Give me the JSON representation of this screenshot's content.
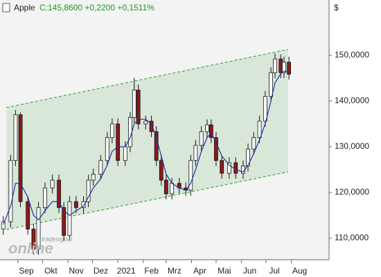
{
  "chart_data": {
    "type": "candlestick",
    "title": "Apple",
    "quote": "C:145,8600 +0,2200 +0,1511%",
    "y_label": "$",
    "watermark": [
      "tradesignal",
      "online"
    ],
    "x": [
      4,
      13,
      19,
      25,
      34,
      41,
      47,
      55,
      64,
      72,
      78,
      85,
      93,
      102,
      108,
      114,
      123,
      131,
      137,
      144,
      153,
      159,
      164,
      169,
      178,
      185,
      191,
      197,
      203,
      210,
      219,
      227,
      233,
      239,
      246,
      253,
      258,
      264,
      271,
      280,
      288,
      297,
      303,
      310,
      317,
      324,
      331,
      336,
      343,
      347,
      353
    ],
    "open": [
      112,
      113.6,
      127,
      137,
      118,
      112,
      107.6,
      116.7,
      121,
      122.7,
      116.7,
      110.6,
      118,
      116.7,
      118,
      122.7,
      124,
      127,
      132,
      135,
      127,
      130,
      136.4,
      142.4,
      135,
      135.6,
      133.3,
      127,
      122.7,
      119.7,
      122,
      121,
      120.5,
      127,
      130.3,
      133.3,
      134.8,
      132,
      127,
      124.2,
      126.5,
      124.2,
      125.8,
      129.5,
      132,
      135.6,
      141,
      146.2,
      149.2,
      146.2,
      148.5
    ],
    "high": [
      114.8,
      128.2,
      138,
      137.5,
      119.2,
      113.2,
      117.9,
      122.2,
      123.9,
      123.9,
      117.9,
      119.2,
      119.2,
      119.2,
      123.9,
      125.2,
      128.2,
      133.2,
      136.2,
      136.2,
      131.2,
      137.6,
      145.1,
      143.6,
      136.8,
      136.8,
      134.5,
      128.2,
      123.9,
      123.2,
      123.2,
      122.2,
      128.2,
      131.5,
      134.5,
      136,
      136,
      133.2,
      128.2,
      127.7,
      127.7,
      127,
      130.7,
      133.2,
      136.8,
      142.2,
      147.4,
      150.4,
      150.2,
      149.7,
      149.7
    ],
    "low": [
      110.8,
      112.4,
      125.8,
      116.8,
      110.8,
      106.4,
      106.4,
      115.5,
      119.8,
      115.5,
      109.4,
      109.4,
      115.5,
      115.5,
      116.8,
      121.5,
      122.8,
      125.8,
      130.8,
      125.8,
      125.8,
      128.8,
      135.2,
      133.8,
      133.8,
      132.1,
      125.8,
      121.5,
      118.5,
      118.5,
      119.8,
      119.3,
      119.3,
      125.8,
      129.1,
      132.1,
      130.8,
      125.8,
      123,
      123,
      123,
      123,
      124.6,
      128.3,
      130.8,
      134.4,
      139.8,
      145,
      145,
      145,
      144.7
    ],
    "close": [
      113.6,
      127,
      137,
      118,
      112,
      107.6,
      116.7,
      121,
      122.7,
      116.7,
      110.6,
      118,
      116.7,
      118,
      122.7,
      124,
      127,
      132,
      135,
      127,
      130,
      136.4,
      142.4,
      135,
      135.6,
      133.3,
      127,
      122.7,
      119.7,
      122,
      121,
      120.5,
      127,
      130.3,
      133.3,
      134.8,
      132,
      127,
      124.2,
      126.5,
      124.2,
      125.8,
      129.5,
      132,
      135.6,
      141,
      146.2,
      149.2,
      146.2,
      148.5,
      145.86
    ],
    "ma": [
      113,
      117,
      122,
      122,
      119,
      115,
      114,
      116,
      118,
      118,
      116,
      115,
      116,
      117,
      119,
      121,
      123,
      126,
      129,
      130,
      130,
      132,
      135,
      136,
      136,
      135,
      132,
      128,
      124,
      122,
      121,
      120.5,
      122,
      125,
      129,
      132,
      133,
      131,
      128,
      126,
      125,
      124.5,
      126,
      128.5,
      131.5,
      135,
      140,
      144,
      146,
      146.5,
      146.5
    ],
    "up_color": "#ffffff",
    "down_color": "#8b1a1a",
    "ma_color": "#1f2fa8",
    "channel_color": "#2a9a2a",
    "channel": {
      "x": [
        8,
        352
      ],
      "upper": [
        138.6,
        151.3
      ],
      "lower": [
        111.9,
        124.5
      ]
    },
    "xlim": [
      0,
      402
    ],
    "ylim": [
      105.3,
      162.1
    ],
    "xticks": [
      {
        "value": 22,
        "label": "Sep"
      },
      {
        "value": 52,
        "label": "Okt"
      },
      {
        "value": 83,
        "label": "Nov"
      },
      {
        "value": 113,
        "label": "Dez"
      },
      {
        "value": 144,
        "label": "2021"
      },
      {
        "value": 175,
        "label": "Feb"
      },
      {
        "value": 203,
        "label": "Mrz"
      },
      {
        "value": 234,
        "label": "Apr"
      },
      {
        "value": 264,
        "label": "Mai"
      },
      {
        "value": 295,
        "label": "Jun"
      },
      {
        "value": 325,
        "label": "Jul"
      },
      {
        "value": 356,
        "label": "Aug"
      }
    ],
    "yticks": [
      {
        "value": 110,
        "label": "110,0000"
      },
      {
        "value": 120,
        "label": "120,0000"
      },
      {
        "value": 130,
        "label": "130,0000"
      },
      {
        "value": 140,
        "label": "140,0000"
      },
      {
        "value": 150,
        "label": "150,0000"
      }
    ]
  }
}
